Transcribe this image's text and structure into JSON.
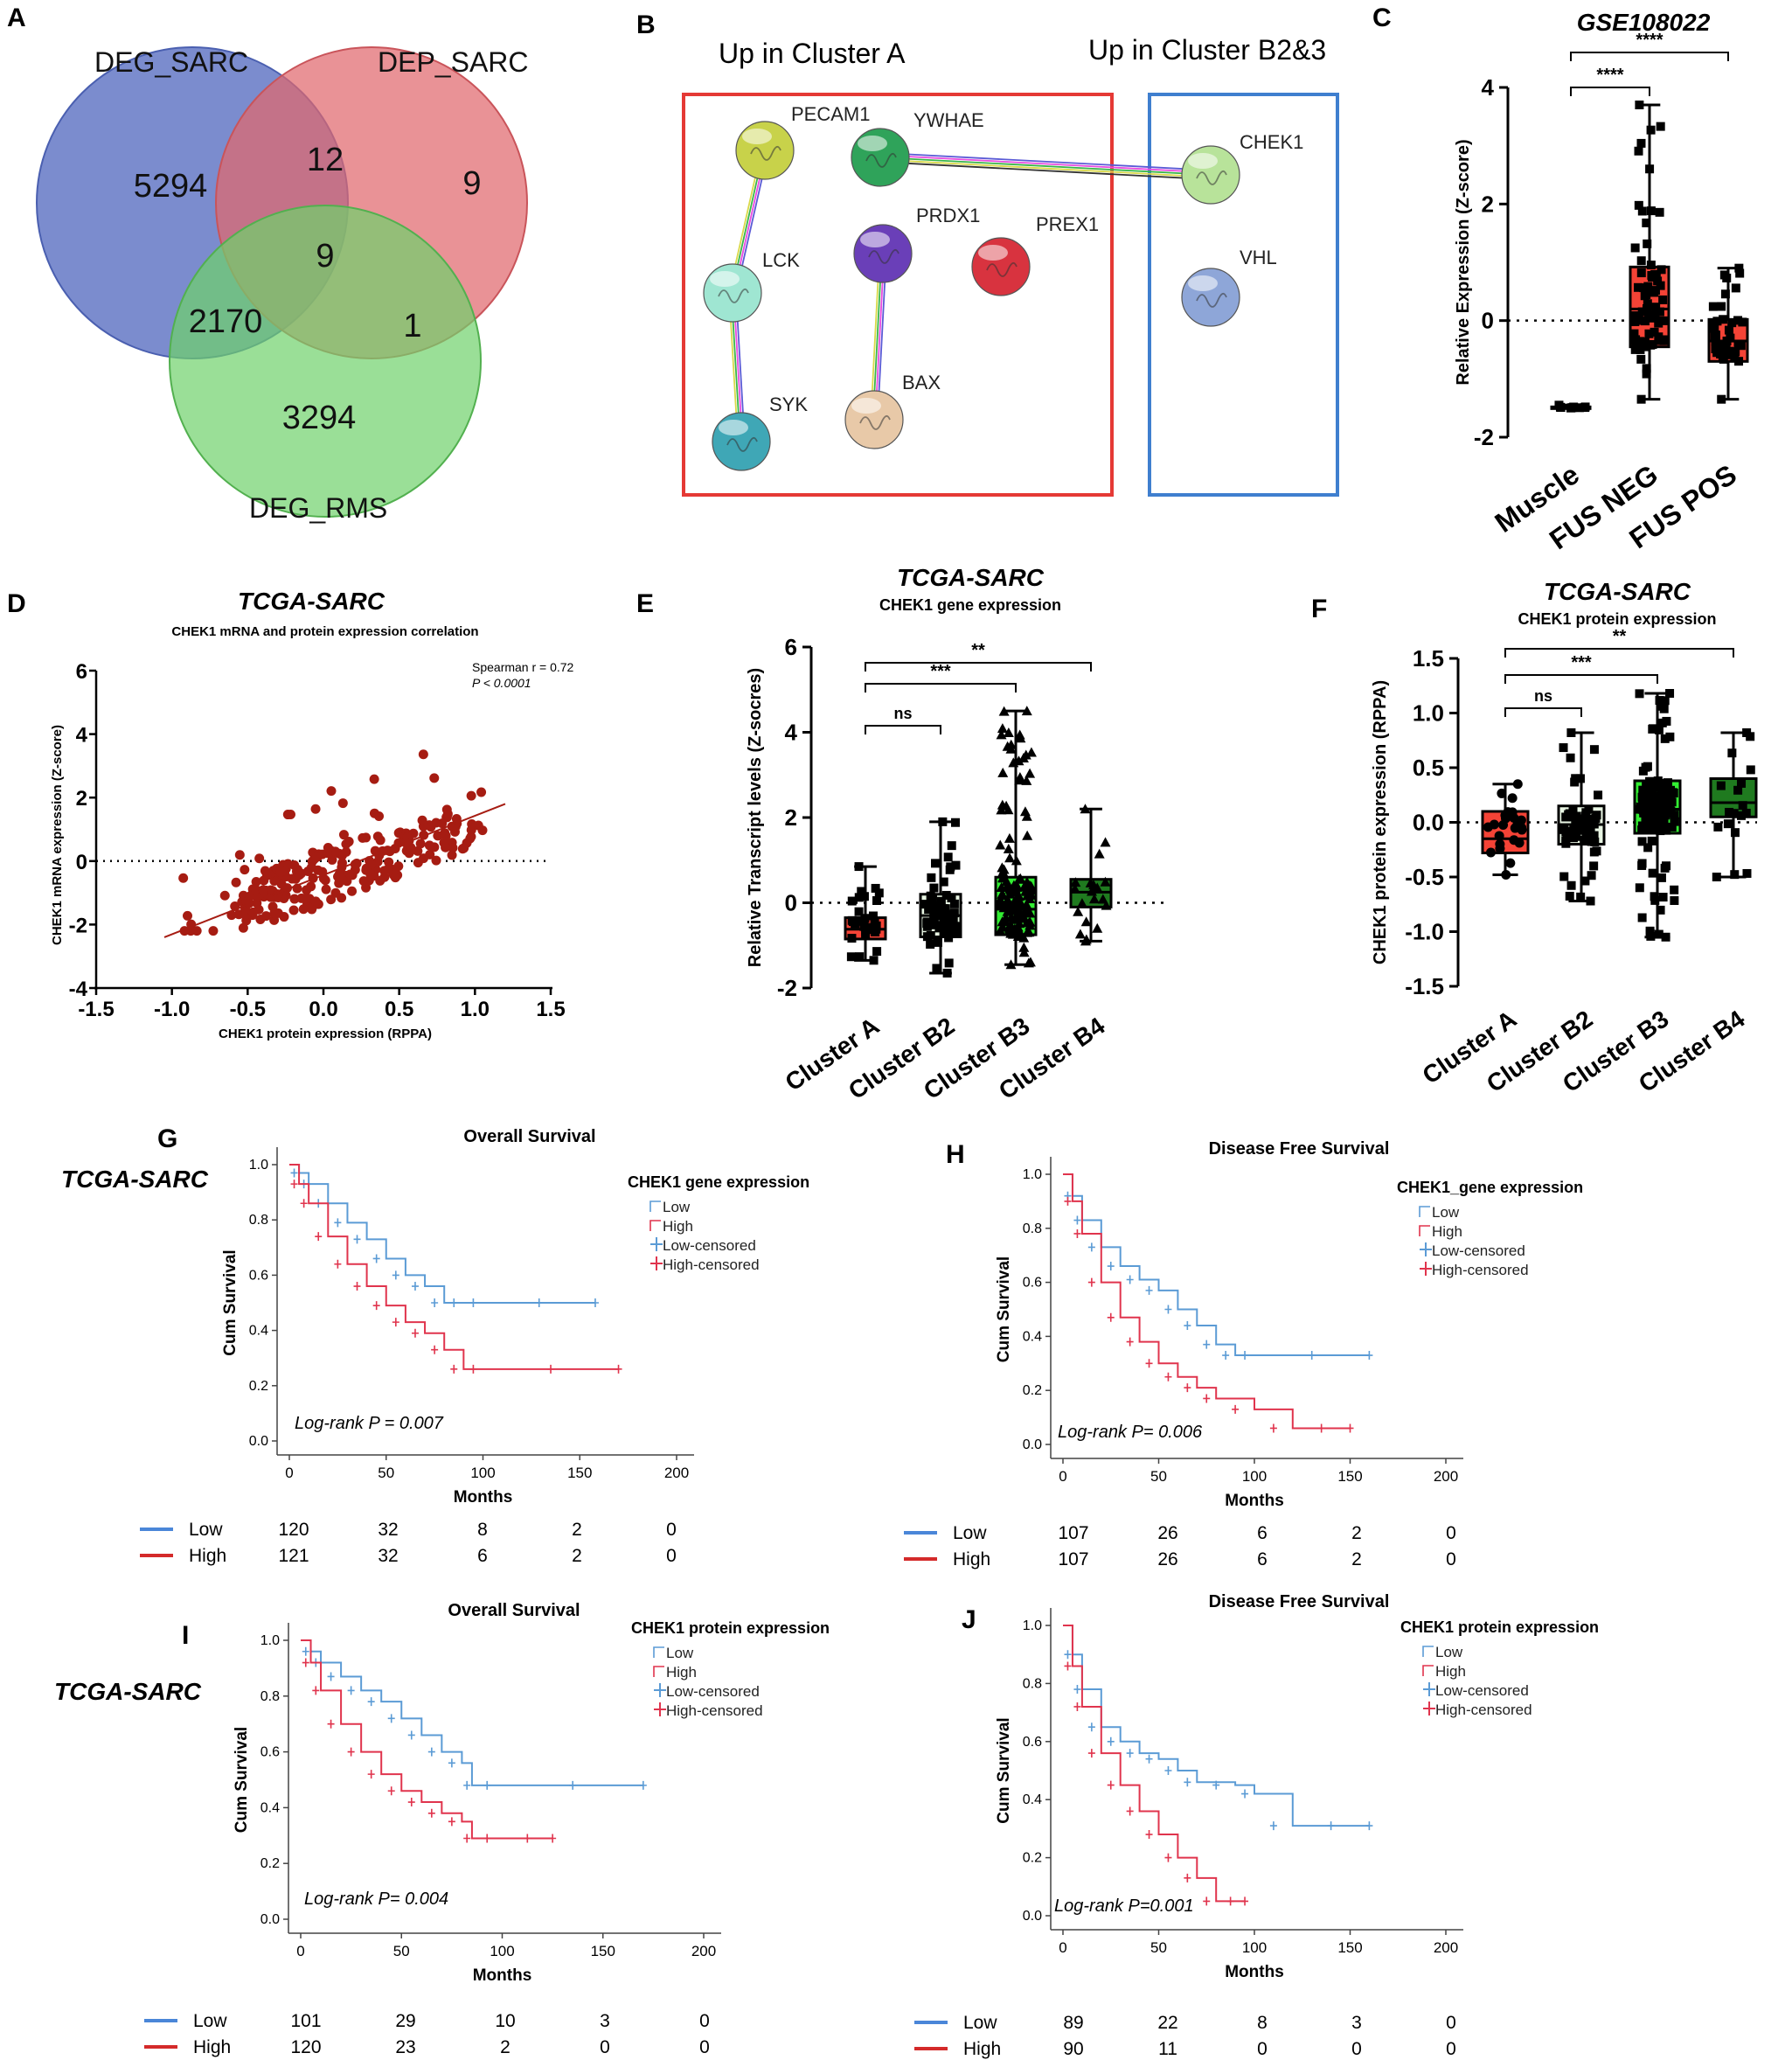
{
  "panel_letters": [
    "A",
    "B",
    "C",
    "D",
    "E",
    "F",
    "G",
    "H",
    "I",
    "J"
  ],
  "colors": {
    "venn_deg_sarc": "#5a6fc2",
    "venn_dep_sarc": "#e0686e",
    "venn_deg_rms": "#6fd26b",
    "cluster_a_box": "#e53935",
    "cluster_b_box": "#3f7fcf",
    "box_red": "#f44336",
    "box_lightgreen": "#e8f5e3",
    "box_green": "#33ee33",
    "box_darkgreen": "#1f7a1f",
    "scatter_red": "#a61c12",
    "km_low": "#5b9bd5",
    "km_high": "#e0344d"
  },
  "panel_a": {
    "set_labels": [
      "DEG_SARC",
      "DEP_SARC",
      "DEG_RMS"
    ],
    "regions": {
      "deg_sarc_only": "5294",
      "dep_sarc_only": "9",
      "deg_rms_only": "3294",
      "deg_sarc_dep_sarc": "12",
      "deg_sarc_deg_rms": "2170",
      "dep_sarc_deg_rms": "1",
      "all_three": "9"
    }
  },
  "panel_b": {
    "left_title": "Up in Cluster A",
    "right_title": "Up in Cluster B2&3",
    "nodes": [
      {
        "id": "PECAM1",
        "label": "PECAM1",
        "color": "#c8d24a",
        "icon": "protein-structure-icon"
      },
      {
        "id": "YWHAE",
        "label": "YWHAE",
        "color": "#2fa35a",
        "icon": "protein-structure-icon"
      },
      {
        "id": "LCK",
        "label": "LCK",
        "color": "#9fe6d2",
        "icon": "protein-structure-icon"
      },
      {
        "id": "PRDX1",
        "label": "PRDX1",
        "color": "#6a3fb8",
        "icon": "protein-structure-icon"
      },
      {
        "id": "PREX1",
        "label": "PREX1",
        "color": "#d8333f",
        "icon": "protein-structure-icon"
      },
      {
        "id": "SYK",
        "label": "SYK",
        "color": "#3fa7b6",
        "icon": "protein-structure-icon"
      },
      {
        "id": "BAX",
        "label": "BAX",
        "color": "#e8c9a8",
        "icon": "protein-structure-icon"
      },
      {
        "id": "CHEK1",
        "label": "CHEK1",
        "color": "#b8e39a",
        "icon": "protein-structure-icon"
      },
      {
        "id": "VHL",
        "label": "VHL",
        "color": "#8ea6d8",
        "icon": "protein-structure-icon"
      }
    ],
    "edges": [
      [
        "PECAM1",
        "LCK"
      ],
      [
        "LCK",
        "SYK"
      ],
      [
        "PRDX1",
        "BAX"
      ],
      [
        "YWHAE",
        "CHEK1"
      ]
    ]
  },
  "chart_data": [
    {
      "panel": "C",
      "type": "box",
      "title": "GSE108022",
      "ylabel": "Relative Expression (Z-score)",
      "ylim": [
        -2,
        4
      ],
      "yticks": [
        "-2",
        "0",
        "2",
        "4"
      ],
      "categories": [
        "Muscle",
        "FUS NEG",
        "FUS POS"
      ],
      "boxes": [
        {
          "name": "Muscle",
          "min": -1.5,
          "q1": -1.5,
          "median": -1.5,
          "q3": -1.48,
          "max": -1.45,
          "fill": "#000000"
        },
        {
          "name": "FUS NEG",
          "min": -1.35,
          "q1": -0.45,
          "median": 0.2,
          "q3": 0.92,
          "max": 3.7,
          "fill": "#f44336"
        },
        {
          "name": "FUS POS",
          "min": -1.35,
          "q1": -0.7,
          "median": -0.35,
          "q3": 0.02,
          "max": 0.9,
          "fill": "#f44336"
        }
      ],
      "reference_line": 0,
      "significance": [
        {
          "from": "Muscle",
          "to": "FUS NEG",
          "label": "****"
        },
        {
          "from": "Muscle",
          "to": "FUS POS",
          "label": "****"
        }
      ]
    },
    {
      "panel": "D",
      "type": "scatter",
      "title": "TCGA-SARC",
      "subtitle": "CHEK1 mRNA and protein expression correlation",
      "xlabel": "CHEK1 protein expression (RPPA)",
      "ylabel": "CHEK1 mRNA expression (Z-score)",
      "xlim": [
        -1.5,
        1.5
      ],
      "ylim": [
        -4,
        6
      ],
      "xticks": [
        "-1.5",
        "-1.0",
        "-0.5",
        "0.0",
        "0.5",
        "1.0",
        "1.5"
      ],
      "yticks": [
        "-4",
        "-2",
        "0",
        "2",
        "4",
        "6"
      ],
      "annotation": {
        "spearman": "Spearman r = 0.72",
        "p_value": "P < 0.0001"
      },
      "fit_line": {
        "x": [
          -1.05,
          1.2
        ],
        "y": [
          -2.4,
          1.8
        ]
      },
      "reference_line": 0
    },
    {
      "panel": "E",
      "type": "box",
      "title": "TCGA-SARC",
      "subtitle": "CHEK1 gene expression",
      "ylabel": "Relative Transcript levels (Z-socres)",
      "ylim": [
        -2,
        6
      ],
      "yticks": [
        "-2",
        "0",
        "2",
        "4",
        "6"
      ],
      "categories": [
        "Cluster A",
        "Cluster B2",
        "Cluster B3",
        "Cluster B4"
      ],
      "boxes": [
        {
          "name": "Cluster A",
          "min": -1.35,
          "q1": -0.85,
          "median": -0.62,
          "q3": -0.35,
          "max": 0.85,
          "fill": "#f44336"
        },
        {
          "name": "Cluster B2",
          "min": -1.65,
          "q1": -0.8,
          "median": -0.3,
          "q3": 0.2,
          "max": 1.9,
          "fill": "#e8f5e3"
        },
        {
          "name": "Cluster B3",
          "min": -1.45,
          "q1": -0.75,
          "median": -0.15,
          "q3": 0.6,
          "max": 4.5,
          "fill": "#33ee33"
        },
        {
          "name": "Cluster B4",
          "min": -0.9,
          "q1": -0.1,
          "median": 0.25,
          "q3": 0.55,
          "max": 2.2,
          "fill": "#1f7a1f"
        }
      ],
      "reference_line": 0,
      "significance": [
        {
          "from": "Cluster A",
          "to": "Cluster B2",
          "label": "ns"
        },
        {
          "from": "Cluster A",
          "to": "Cluster B3",
          "label": "***"
        },
        {
          "from": "Cluster A",
          "to": "Cluster B4",
          "label": "**"
        }
      ]
    },
    {
      "panel": "F",
      "type": "box",
      "title": "TCGA-SARC",
      "subtitle": "CHEK1 protein expression",
      "ylabel": "CHEK1 protein expression  (RPPA)",
      "ylim": [
        -1.5,
        1.5
      ],
      "yticks": [
        "-1.5",
        "-1.0",
        "-0.5",
        "0.0",
        "0.5",
        "1.0",
        "1.5"
      ],
      "categories": [
        "Cluster A",
        "Cluster B2",
        "Cluster B3",
        "Cluster B4"
      ],
      "boxes": [
        {
          "name": "Cluster A",
          "min": -0.48,
          "q1": -0.28,
          "median": -0.15,
          "q3": 0.1,
          "max": 0.35,
          "fill": "#f44336"
        },
        {
          "name": "Cluster B2",
          "min": -0.72,
          "q1": -0.2,
          "median": -0.02,
          "q3": 0.15,
          "max": 0.82,
          "fill": "#e8f5e3"
        },
        {
          "name": "Cluster B3",
          "min": -1.05,
          "q1": -0.1,
          "median": 0.12,
          "q3": 0.38,
          "max": 1.18,
          "fill": "#33ee33"
        },
        {
          "name": "Cluster B4",
          "min": -0.5,
          "q1": 0.05,
          "median": 0.18,
          "q3": 0.4,
          "max": 0.82,
          "fill": "#1f7a1f"
        }
      ],
      "reference_line": 0,
      "significance": [
        {
          "from": "Cluster A",
          "to": "Cluster B2",
          "label": "ns"
        },
        {
          "from": "Cluster A",
          "to": "Cluster B3",
          "label": "***"
        },
        {
          "from": "Cluster A",
          "to": "Cluster B4",
          "label": "**"
        }
      ]
    },
    {
      "panel": "G",
      "type": "line",
      "title": "Overall Survival",
      "side_label": "TCGA-SARC",
      "legend_title": "CHEK1 gene expression",
      "legend_entries": [
        "Low",
        "High",
        "Low-censored",
        "High-censored"
      ],
      "xlabel": "Months",
      "ylabel": "Cum Survival",
      "xlim": [
        0,
        200
      ],
      "ylim": [
        0,
        1
      ],
      "xticks": [
        "0",
        "50",
        "100",
        "150",
        "200"
      ],
      "yticks": [
        "0.0",
        "0.2",
        "0.4",
        "0.6",
        "0.8",
        "1.0"
      ],
      "annotation": "Log-rank P = 0.007",
      "series": [
        {
          "name": "Low",
          "x": [
            0,
            5,
            10,
            20,
            30,
            40,
            50,
            60,
            70,
            80,
            90,
            100,
            158
          ],
          "y": [
            1.0,
            0.97,
            0.93,
            0.86,
            0.79,
            0.73,
            0.66,
            0.6,
            0.56,
            0.5,
            0.5,
            0.5,
            0.5
          ]
        },
        {
          "name": "High",
          "x": [
            0,
            5,
            10,
            20,
            30,
            40,
            50,
            60,
            70,
            80,
            90,
            100,
            170
          ],
          "y": [
            1.0,
            0.93,
            0.86,
            0.74,
            0.64,
            0.56,
            0.49,
            0.43,
            0.39,
            0.33,
            0.26,
            0.26,
            0.26
          ]
        }
      ],
      "risk_table": {
        "Low": [
          "120",
          "32",
          "8",
          "2",
          "0"
        ],
        "High": [
          "121",
          "32",
          "6",
          "2",
          "0"
        ]
      }
    },
    {
      "panel": "H",
      "type": "line",
      "title": "Disease Free Survival",
      "legend_title": "CHEK1_gene expression",
      "legend_entries": [
        "Low",
        "High",
        "Low-censored",
        "High-censored"
      ],
      "xlabel": "Months",
      "ylabel": "Cum Survival",
      "xlim": [
        0,
        200
      ],
      "ylim": [
        0,
        1
      ],
      "xticks": [
        "0",
        "50",
        "100",
        "150",
        "200"
      ],
      "yticks": [
        "0.0",
        "0.2",
        "0.4",
        "0.6",
        "0.8",
        "1.0"
      ],
      "annotation": "Log-rank P= 0.006",
      "series": [
        {
          "name": "Low",
          "x": [
            0,
            5,
            10,
            20,
            30,
            40,
            50,
            60,
            70,
            80,
            90,
            100,
            160
          ],
          "y": [
            1.0,
            0.92,
            0.83,
            0.73,
            0.66,
            0.61,
            0.57,
            0.5,
            0.44,
            0.37,
            0.33,
            0.33,
            0.33
          ]
        },
        {
          "name": "High",
          "x": [
            0,
            5,
            10,
            20,
            30,
            40,
            50,
            60,
            70,
            80,
            100,
            120,
            150
          ],
          "y": [
            1.0,
            0.9,
            0.78,
            0.6,
            0.47,
            0.38,
            0.3,
            0.25,
            0.21,
            0.17,
            0.13,
            0.06,
            0.06
          ]
        }
      ],
      "risk_table": {
        "Low": [
          "107",
          "26",
          "6",
          "2",
          "0"
        ],
        "High": [
          "107",
          "26",
          "6",
          "2",
          "0"
        ]
      }
    },
    {
      "panel": "I",
      "type": "line",
      "title": "Overall Survival",
      "side_label": "TCGA-SARC",
      "legend_title": "CHEK1 protein expression",
      "legend_entries": [
        "Low",
        "High",
        "Low-censored",
        "High-censored"
      ],
      "xlabel": "Months",
      "ylabel": "Cum Survival",
      "xlim": [
        0,
        200
      ],
      "ylim": [
        0,
        1
      ],
      "xticks": [
        "0",
        "50",
        "100",
        "150",
        "200"
      ],
      "yticks": [
        "0.0",
        "0.2",
        "0.4",
        "0.6",
        "0.8",
        "1.0"
      ],
      "annotation": "Log-rank P= 0.004",
      "series": [
        {
          "name": "Low",
          "x": [
            0,
            5,
            10,
            20,
            30,
            40,
            50,
            60,
            70,
            80,
            85,
            100,
            170
          ],
          "y": [
            1.0,
            0.96,
            0.92,
            0.87,
            0.82,
            0.78,
            0.72,
            0.66,
            0.6,
            0.56,
            0.48,
            0.48,
            0.48
          ]
        },
        {
          "name": "High",
          "x": [
            0,
            5,
            10,
            20,
            30,
            40,
            50,
            60,
            70,
            80,
            85,
            100,
            125
          ],
          "y": [
            1.0,
            0.92,
            0.82,
            0.7,
            0.6,
            0.52,
            0.46,
            0.42,
            0.38,
            0.35,
            0.29,
            0.29,
            0.29
          ]
        }
      ],
      "risk_table": {
        "Low": [
          "101",
          "29",
          "10",
          "3",
          "0"
        ],
        "High": [
          "120",
          "23",
          "2",
          "0",
          "0"
        ]
      }
    },
    {
      "panel": "J",
      "type": "line",
      "title": "Disease Free Survival",
      "legend_title": "CHEK1 protein expression",
      "legend_entries": [
        "Low",
        "High",
        "Low-censored",
        "High-censored"
      ],
      "xlabel": "Months",
      "ylabel": "Cum Survival",
      "xlim": [
        0,
        200
      ],
      "ylim": [
        0,
        1
      ],
      "xticks": [
        "0",
        "50",
        "100",
        "150",
        "200"
      ],
      "yticks": [
        "0.0",
        "0.2",
        "0.4",
        "0.6",
        "0.8",
        "1.0"
      ],
      "annotation": "Log-rank P=0.001",
      "series": [
        {
          "name": "Low",
          "x": [
            0,
            5,
            10,
            20,
            30,
            40,
            50,
            60,
            70,
            90,
            100,
            120,
            160
          ],
          "y": [
            1.0,
            0.9,
            0.78,
            0.65,
            0.6,
            0.56,
            0.54,
            0.5,
            0.46,
            0.45,
            0.42,
            0.31,
            0.31
          ]
        },
        {
          "name": "High",
          "x": [
            0,
            5,
            10,
            20,
            30,
            40,
            50,
            60,
            70,
            80,
            95
          ],
          "y": [
            1.0,
            0.86,
            0.72,
            0.56,
            0.45,
            0.36,
            0.28,
            0.2,
            0.13,
            0.05,
            0.05
          ]
        }
      ],
      "risk_table": {
        "Low": [
          "89",
          "22",
          "8",
          "3",
          "0"
        ],
        "High": [
          "90",
          "11",
          "0",
          "0",
          "0"
        ]
      }
    }
  ]
}
